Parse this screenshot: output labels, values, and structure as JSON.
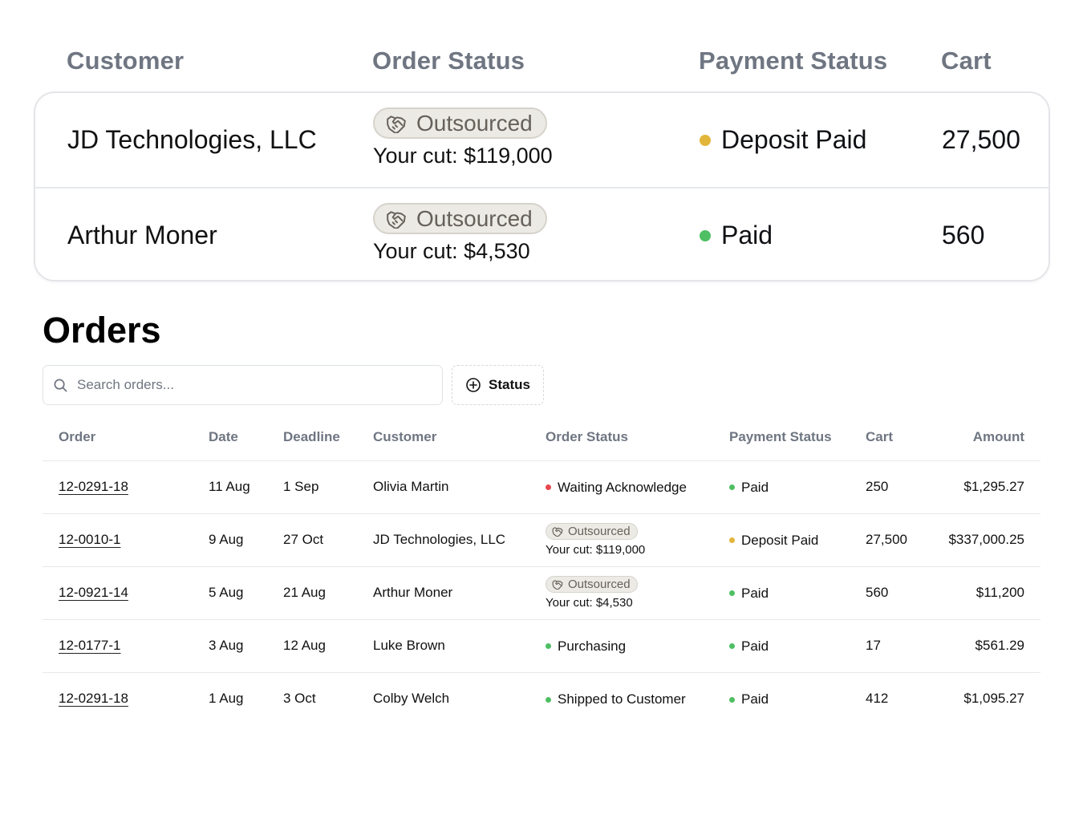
{
  "highlight": {
    "headers": {
      "customer": "Customer",
      "order_status": "Order Status",
      "payment_status": "Payment Status",
      "cart": "Cart"
    },
    "rows": [
      {
        "customer": "JD Technologies, LLC",
        "badge": "Outsourced",
        "cut": "Your cut: $119,000",
        "payment": "Deposit Paid",
        "payment_color": "#e2b53b",
        "cart": "27,500"
      },
      {
        "customer": "Arthur Moner",
        "badge": "Outsourced",
        "cut": "Your cut: $4,530",
        "payment": "Paid",
        "payment_color": "#4fbf63",
        "cart": "560"
      }
    ]
  },
  "orders": {
    "title": "Orders",
    "search": {
      "placeholder": "Search orders..."
    },
    "status_filter_label": "Status",
    "columns": {
      "order": "Order",
      "date": "Date",
      "deadline": "Deadline",
      "customer": "Customer",
      "order_status": "Order Status",
      "payment_status": "Payment Status",
      "cart": "Cart",
      "amount": "Amount"
    },
    "rows": [
      {
        "order": "12-0291-18",
        "date": "11 Aug",
        "deadline": "1 Sep",
        "customer": "Olivia Martin",
        "status": "Waiting Acknowledge",
        "status_color": "#e5484d",
        "payment": "Paid",
        "payment_color": "#4fbf63",
        "cart": "250",
        "amount": "$1,295.27"
      },
      {
        "order": "12-0010-1",
        "date": "9 Aug",
        "deadline": "27 Oct",
        "customer": "JD Technologies, LLC",
        "badge": "Outsourced",
        "cut": "Your cut: $119,000",
        "payment": "Deposit Paid",
        "payment_color": "#e2b53b",
        "cart": "27,500",
        "amount": "$337,000.25"
      },
      {
        "order": "12-0921-14",
        "date": "5 Aug",
        "deadline": "21 Aug",
        "customer": "Arthur Moner",
        "badge": "Outsourced",
        "cut": "Your cut: $4,530",
        "payment": "Paid",
        "payment_color": "#4fbf63",
        "cart": "560",
        "amount": "$11,200"
      },
      {
        "order": "12-0177-1",
        "date": "3 Aug",
        "deadline": "12 Aug",
        "customer": "Luke Brown",
        "status": "Purchasing",
        "status_color": "#4fbf63",
        "payment": "Paid",
        "payment_color": "#4fbf63",
        "cart": "17",
        "amount": "$561.29"
      },
      {
        "order": "12-0291-18",
        "date": "1 Aug",
        "deadline": "3 Oct",
        "customer": "Colby Welch",
        "status": "Shipped to Customer",
        "status_color": "#4fbf63",
        "payment": "Paid",
        "payment_color": "#4fbf63",
        "cart": "412",
        "amount": "$1,095.27"
      }
    ]
  }
}
